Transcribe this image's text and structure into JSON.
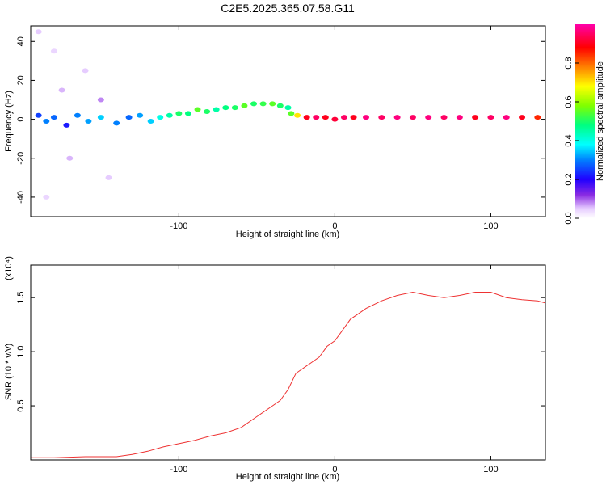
{
  "title": "C2E5.2025.365.07.58.G11",
  "chart_data": [
    {
      "type": "scatter",
      "name": "spectrogram",
      "xlabel": "Height of straight line (km)",
      "ylabel": "Frequency (Hz)",
      "xlim": [
        -195,
        135
      ],
      "ylim": [
        -50,
        48
      ],
      "xticks": [
        -100,
        0,
        100
      ],
      "xticklabels": [
        "-100",
        "0",
        "100"
      ],
      "yticks": [
        -40,
        -20,
        0,
        20,
        40
      ],
      "yticklabels": [
        "-40",
        "-20",
        "0",
        "20",
        "40"
      ],
      "points": [
        [
          -190,
          2
        ],
        [
          -185,
          -1
        ],
        [
          -180,
          1
        ],
        [
          -172,
          -3
        ],
        [
          -165,
          2
        ],
        [
          -158,
          -1
        ],
        [
          -150,
          1
        ],
        [
          -140,
          -2
        ],
        [
          -132,
          1
        ],
        [
          -125,
          2
        ],
        [
          -118,
          -1
        ],
        [
          -112,
          1
        ],
        [
          -106,
          2
        ],
        [
          -100,
          3
        ],
        [
          -94,
          3
        ],
        [
          -88,
          5
        ],
        [
          -82,
          4
        ],
        [
          -76,
          5
        ],
        [
          -70,
          6
        ],
        [
          -64,
          6
        ],
        [
          -58,
          7
        ],
        [
          -52,
          8
        ],
        [
          -46,
          8
        ],
        [
          -40,
          8
        ],
        [
          -35,
          7
        ],
        [
          -30,
          6
        ],
        [
          -28,
          3
        ],
        [
          -24,
          2
        ],
        [
          -18,
          1
        ],
        [
          -12,
          1
        ],
        [
          -6,
          1
        ],
        [
          0,
          0
        ],
        [
          6,
          1
        ],
        [
          12,
          1
        ],
        [
          20,
          1
        ],
        [
          30,
          1
        ],
        [
          40,
          1
        ],
        [
          50,
          1
        ],
        [
          60,
          1
        ],
        [
          70,
          1
        ],
        [
          80,
          1
        ],
        [
          90,
          1
        ],
        [
          100,
          1
        ],
        [
          110,
          1
        ],
        [
          120,
          1
        ],
        [
          130,
          1
        ],
        [
          -150,
          10
        ],
        [
          -160,
          25
        ],
        [
          -170,
          -20
        ],
        [
          -180,
          35
        ],
        [
          -145,
          -30
        ],
        [
          -175,
          15
        ],
        [
          -185,
          -40
        ],
        [
          -190,
          45
        ]
      ],
      "amplitudes": [
        0.25,
        0.3,
        0.28,
        0.22,
        0.3,
        0.32,
        0.35,
        0.3,
        0.28,
        0.32,
        0.35,
        0.4,
        0.45,
        0.5,
        0.48,
        0.55,
        0.5,
        0.45,
        0.48,
        0.5,
        0.55,
        0.5,
        0.52,
        0.55,
        0.5,
        0.45,
        0.55,
        0.7,
        0.9,
        0.95,
        0.9,
        0.92,
        0.95,
        0.9,
        0.97,
        0.95,
        0.97,
        0.95,
        0.97,
        0.95,
        0.97,
        0.9,
        0.95,
        0.97,
        0.9,
        0.85,
        0.08,
        0.05,
        0.06,
        0.04,
        0.05,
        0.06,
        0.04,
        0.05
      ]
    },
    {
      "type": "line",
      "name": "snr",
      "xlabel": "Height of straight line (km)",
      "ylabel": "SNR (10 * v/v)",
      "scale_label": "(x10⁴)",
      "xlim": [
        -195,
        135
      ],
      "ylim": [
        0,
        1.8
      ],
      "xticks": [
        -100,
        0,
        100
      ],
      "xticklabels": [
        "-100",
        "0",
        "100"
      ],
      "yticks": [
        0.5,
        1.0,
        1.5
      ],
      "yticklabels": [
        "0.5",
        "1.0",
        "1.5"
      ],
      "x": [
        -195,
        -180,
        -160,
        -140,
        -130,
        -120,
        -110,
        -100,
        -90,
        -80,
        -70,
        -60,
        -50,
        -45,
        -40,
        -35,
        -30,
        -25,
        -20,
        -15,
        -10,
        -5,
        0,
        5,
        10,
        15,
        20,
        30,
        40,
        50,
        60,
        70,
        80,
        90,
        100,
        110,
        120,
        130,
        135
      ],
      "y": [
        0.02,
        0.02,
        0.03,
        0.03,
        0.05,
        0.08,
        0.12,
        0.15,
        0.18,
        0.22,
        0.25,
        0.3,
        0.4,
        0.45,
        0.5,
        0.55,
        0.65,
        0.8,
        0.85,
        0.9,
        0.95,
        1.05,
        1.1,
        1.2,
        1.3,
        1.35,
        1.4,
        1.47,
        1.52,
        1.55,
        1.52,
        1.5,
        1.52,
        1.55,
        1.55,
        1.5,
        1.48,
        1.47,
        1.45
      ],
      "color": "#ee3333"
    },
    {
      "type": "colorbar",
      "name": "colorbar",
      "label": "Normalized spectral amplitude",
      "ticks": [
        0.0,
        0.2,
        0.4,
        0.6,
        0.8
      ],
      "ticklabels": [
        "0.0",
        "0.2",
        "0.4",
        "0.6",
        "0.8"
      ],
      "vmin": 0,
      "vmax": 1
    }
  ]
}
